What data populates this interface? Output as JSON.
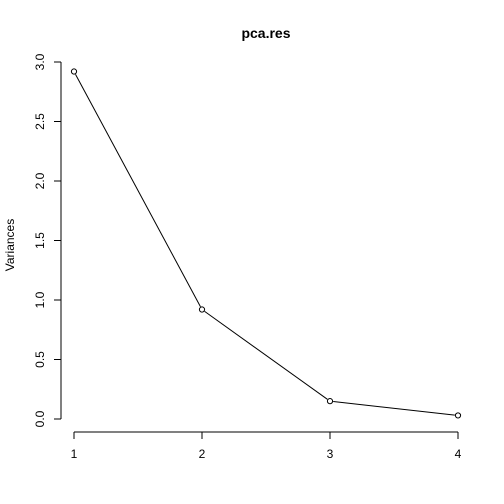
{
  "chart_data": {
    "type": "line",
    "title": "pca.res",
    "xlabel": "",
    "ylabel": "Variances",
    "x": [
      1,
      2,
      3,
      4
    ],
    "values": [
      2.92,
      0.92,
      0.15,
      0.03
    ],
    "xticks": [
      "1",
      "2",
      "3",
      "4"
    ],
    "yticks": [
      "0.0",
      "0.5",
      "1.0",
      "1.5",
      "2.0",
      "2.5",
      "3.0"
    ],
    "xlim": [
      1,
      4
    ],
    "ylim": [
      0,
      3
    ],
    "grid": false,
    "markers": "open-circle",
    "line_color": "#000000"
  }
}
